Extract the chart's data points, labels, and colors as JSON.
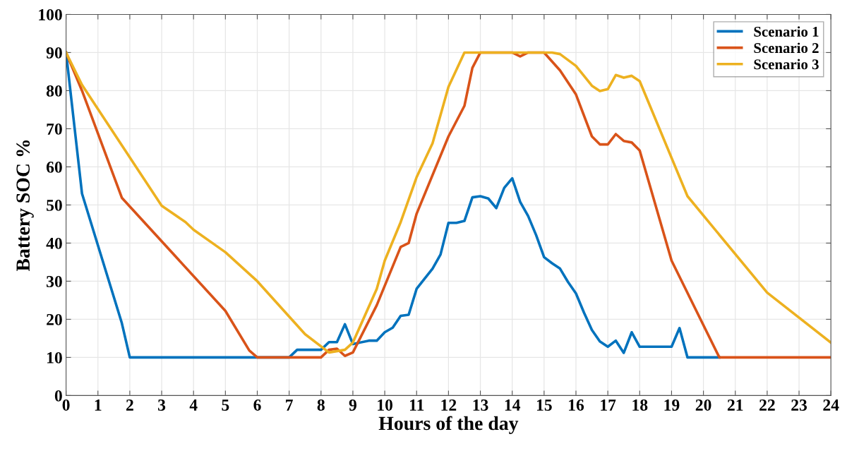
{
  "chart_data": {
    "type": "line",
    "xlabel": "Hours of the day",
    "ylabel": "Battery SOC %",
    "xlim": [
      0,
      24
    ],
    "ylim": [
      0,
      100
    ],
    "xticks": [
      0,
      1,
      2,
      3,
      4,
      5,
      6,
      7,
      8,
      9,
      10,
      11,
      12,
      13,
      14,
      15,
      16,
      17,
      18,
      19,
      20,
      21,
      22,
      23,
      24
    ],
    "yticks": [
      0,
      10,
      20,
      30,
      40,
      50,
      60,
      70,
      80,
      90,
      100
    ],
    "grid": true,
    "legend": "top right",
    "line_style": "solid",
    "marker": "none",
    "series": [
      {
        "name": "Scenario 1",
        "color": "#0072bd",
        "x": [
          0,
          0.5,
          1.75,
          2,
          7,
          7.25,
          8,
          8.25,
          8.5,
          8.75,
          9,
          9.5,
          9.75,
          10,
          10.25,
          10.5,
          10.75,
          11,
          11.5,
          11.75,
          12,
          12.25,
          12.5,
          12.75,
          13,
          13.25,
          13.5,
          13.75,
          14,
          14.25,
          14.5,
          14.75,
          15,
          15.25,
          15.5,
          15.75,
          16,
          16.25,
          16.5,
          16.75,
          17,
          17.25,
          17.5,
          17.75,
          18,
          19,
          19.25,
          19.5,
          20.5
        ],
        "values": [
          90,
          53,
          19,
          10,
          10,
          12,
          12,
          14,
          14,
          18.7,
          13.5,
          14.4,
          14.4,
          16.6,
          17.8,
          20.9,
          21.2,
          28,
          33.3,
          37,
          45.3,
          45.3,
          45.8,
          52,
          52.3,
          51.7,
          49.2,
          54.5,
          57,
          50.8,
          47.1,
          42.1,
          36.3,
          34.7,
          33.3,
          29.8,
          26.8,
          21.8,
          17.2,
          14.2,
          12.8,
          14.4,
          11.2,
          16.6,
          12.8,
          12.8,
          17.7,
          10,
          10
        ]
      },
      {
        "name": "Scenario 2",
        "color": "#d95319",
        "x": [
          0,
          0.5,
          1.75,
          5,
          5.75,
          6,
          8,
          8.25,
          8.5,
          8.75,
          9,
          9.75,
          10.5,
          10.75,
          11,
          12,
          12.5,
          12.75,
          13,
          14,
          14.25,
          14.5,
          15,
          15.5,
          16,
          16.5,
          16.75,
          17,
          17.25,
          17.5,
          17.75,
          18,
          19,
          20.5,
          24
        ],
        "values": [
          90,
          80,
          51.9,
          22.2,
          11.8,
          10,
          10,
          12,
          12.3,
          10.4,
          11.3,
          23.7,
          39,
          40,
          47.7,
          68,
          76,
          86,
          90,
          90,
          89,
          90,
          90,
          85.3,
          79,
          68,
          65.9,
          65.9,
          68.6,
          66.8,
          66.4,
          64.3,
          35.4,
          10,
          10
        ]
      },
      {
        "name": "Scenario 3",
        "color": "#edb120",
        "x": [
          0,
          0.5,
          3,
          3.75,
          4,
          5,
          6,
          7.5,
          8.25,
          8.75,
          9,
          9.75,
          10,
          10.5,
          11,
          11.5,
          12,
          12.5,
          15.25,
          15.5,
          16,
          16.5,
          16.75,
          17,
          17.25,
          17.5,
          17.75,
          18,
          19.5,
          22,
          24
        ],
        "values": [
          90,
          81.5,
          49.8,
          45.5,
          43.5,
          37.6,
          30,
          16.1,
          11.3,
          12,
          13.9,
          28,
          35.4,
          45.5,
          57.3,
          66.2,
          81,
          90,
          90,
          89.6,
          86.5,
          81.3,
          79.9,
          80.4,
          84.1,
          83.4,
          83.9,
          82.5,
          52.3,
          27,
          13.9
        ]
      }
    ]
  }
}
